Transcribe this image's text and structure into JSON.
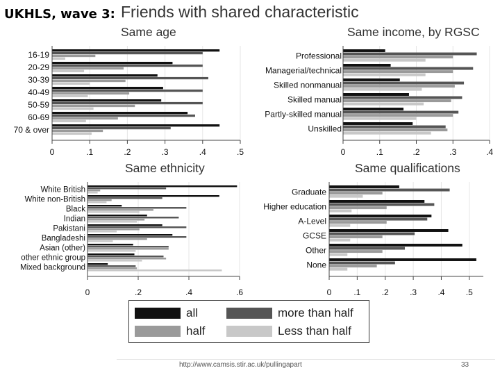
{
  "header": {
    "wave_label": "UKHLS, wave 3:",
    "title": "Friends with shared characteristic"
  },
  "colors": {
    "all": "#111111",
    "more_than_half": "#555555",
    "half": "#9a9a9a",
    "less_than_half": "#c8c8c8",
    "axis": "#444444",
    "panel_title": "#333333"
  },
  "legend": [
    {
      "key": "all",
      "label": "all"
    },
    {
      "key": "more_than_half",
      "label": "more than half"
    },
    {
      "key": "half",
      "label": "half"
    },
    {
      "key": "less_than_half",
      "label": "Less than half"
    }
  ],
  "chart_data": [
    {
      "type": "bar",
      "orientation": "horizontal",
      "title": "Same age",
      "categories": [
        "16-19",
        "20-29",
        "30-39",
        "40-49",
        "50-59",
        "60-69",
        "70 & over"
      ],
      "series": [
        {
          "name": "all",
          "values": [
            0.445,
            0.32,
            0.28,
            0.295,
            0.29,
            0.36,
            0.445
          ]
        },
        {
          "name": "more than half",
          "values": [
            0.4,
            0.4,
            0.415,
            0.4,
            0.4,
            0.38,
            0.315
          ]
        },
        {
          "name": "half",
          "values": [
            0.115,
            0.19,
            0.195,
            0.205,
            0.22,
            0.175,
            0.135
          ]
        },
        {
          "name": "Less than half",
          "values": [
            0.035,
            0.085,
            0.1,
            0.095,
            0.11,
            0.09,
            0.105
          ]
        }
      ],
      "xlim": [
        0,
        0.5
      ],
      "ticks": [
        0,
        0.1,
        0.2,
        0.3,
        0.4,
        0.5
      ],
      "tick_labels": [
        "0",
        ".1",
        ".2",
        ".3",
        ".4",
        ".5"
      ]
    },
    {
      "type": "bar",
      "orientation": "horizontal",
      "title": "Same income, by RGSC",
      "categories": [
        "Professional",
        "Managerial/technical",
        "Skilled nonmanual",
        "Skilled manual",
        "Partly-skilled manual",
        "Unskilled"
      ],
      "series": [
        {
          "name": "all",
          "values": [
            0.115,
            0.13,
            0.155,
            0.18,
            0.165,
            0.19
          ]
        },
        {
          "name": "more than half",
          "values": [
            0.365,
            0.355,
            0.33,
            0.325,
            0.315,
            0.28
          ]
        },
        {
          "name": "half",
          "values": [
            0.3,
            0.3,
            0.305,
            0.295,
            0.3,
            0.285
          ]
        },
        {
          "name": "Less than half",
          "values": [
            0.225,
            0.225,
            0.215,
            0.22,
            0.2,
            0.24
          ]
        }
      ],
      "xlim": [
        0,
        0.4
      ],
      "ticks": [
        0,
        0.1,
        0.2,
        0.3,
        0.4
      ],
      "tick_labels": [
        "0",
        ".1",
        ".2",
        ".3",
        ".4"
      ]
    },
    {
      "type": "bar",
      "orientation": "horizontal",
      "title": "Same ethnicity",
      "categories": [
        "White British",
        "White non-British",
        "Black",
        "Indian",
        "Pakistani",
        "Bangladeshi",
        "Asian (other)",
        "other ethnic group",
        "Mixed background"
      ],
      "series": [
        {
          "name": "all",
          "values": [
            0.59,
            0.52,
            0.135,
            0.235,
            0.295,
            0.335,
            0.18,
            0.185,
            0.08
          ]
        },
        {
          "name": "more than half",
          "values": [
            0.31,
            0.295,
            0.39,
            0.36,
            0.39,
            0.39,
            0.32,
            0.3,
            0.19
          ]
        },
        {
          "name": "half",
          "values": [
            0.05,
            0.095,
            0.26,
            0.225,
            0.205,
            0.235,
            0.32,
            0.31,
            0.195
          ]
        },
        {
          "name": "Less than half",
          "values": [
            0.04,
            0.075,
            0.205,
            0.195,
            0.115,
            0.1,
            0.19,
            0.215,
            0.53
          ]
        }
      ],
      "xlim": [
        0,
        0.6
      ],
      "ticks": [
        0,
        0.2,
        0.4,
        0.6
      ],
      "tick_labels": [
        "0",
        ".2",
        ".4",
        ".6"
      ]
    },
    {
      "type": "bar",
      "orientation": "horizontal",
      "title": "Same qualifications",
      "categories": [
        "Graduate",
        "Higher education",
        "A-Level",
        "GCSE",
        "Other",
        "None"
      ],
      "series": [
        {
          "name": "all",
          "values": [
            0.25,
            0.34,
            0.365,
            0.425,
            0.475,
            0.525
          ]
        },
        {
          "name": "more than half",
          "values": [
            0.43,
            0.375,
            0.35,
            0.305,
            0.27,
            0.235
          ]
        },
        {
          "name": "half",
          "values": [
            0.19,
            0.205,
            0.205,
            0.19,
            0.19,
            0.17
          ]
        },
        {
          "name": "Less than half",
          "values": [
            0.12,
            0.08,
            0.075,
            0.075,
            0.065,
            0.065
          ]
        }
      ],
      "xlim": [
        0,
        0.55
      ],
      "ticks": [
        0,
        0.1,
        0.2,
        0.3,
        0.4,
        0.5
      ],
      "tick_labels": [
        "0",
        ".1",
        ".2",
        ".3",
        ".4",
        ".5"
      ]
    }
  ],
  "footer": {
    "url": "http://www.camsis.stir.ac.uk/pullingapart",
    "page": "33"
  }
}
